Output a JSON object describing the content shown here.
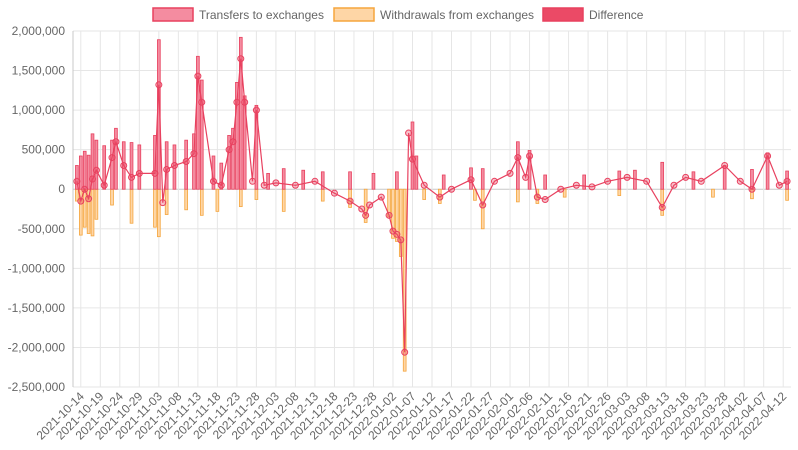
{
  "chart_data": {
    "type": "bar",
    "title": "",
    "xlabel": "",
    "ylabel": "",
    "ylim": [
      -2500000,
      2000000
    ],
    "y_ticks": [
      2000000,
      1500000,
      1000000,
      500000,
      0,
      -500000,
      -1000000,
      -1500000,
      -2000000,
      -2500000
    ],
    "y_tick_labels": [
      "2,000,000",
      "1,500,000",
      "1,000,000",
      "500,000",
      "0",
      "-500,000",
      "-1,000,000",
      "-1,500,000",
      "-2,000,000",
      "-2,500,000"
    ],
    "x_start": "2021-10-12",
    "x_end": "2022-04-14",
    "x_ticks": [
      "2021-10-14",
      "2021-10-19",
      "2021-10-24",
      "2021-10-29",
      "2021-11-03",
      "2021-11-08",
      "2021-11-13",
      "2021-11-18",
      "2021-11-23",
      "2021-11-28",
      "2021-12-03",
      "2021-12-08",
      "2021-12-13",
      "2021-12-18",
      "2021-12-23",
      "2021-12-28",
      "2022-01-02",
      "2022-01-07",
      "2022-01-12",
      "2022-01-17",
      "2022-01-22",
      "2022-01-27",
      "2022-02-01",
      "2022-02-06",
      "2022-02-11",
      "2022-02-16",
      "2022-02-21",
      "2022-02-26",
      "2022-03-03",
      "2022-03-08",
      "2022-03-13",
      "2022-03-18",
      "2022-03-23",
      "2022-03-28",
      "2022-04-02",
      "2022-04-07",
      "2022-04-12"
    ],
    "grid": true,
    "legend_position": "top",
    "colors": {
      "transfers_fill": "#f48ca0",
      "transfers_stroke": "#e8415f",
      "withdrawals_fill": "#fed6a6",
      "withdrawals_stroke": "#f5a53d",
      "difference_fill": "#eb4a66",
      "difference_stroke": "#e8415f"
    },
    "series": [
      {
        "name": "Transfers to exchanges",
        "type": "bar",
        "points": [
          [
            "2021-10-13",
            300000
          ],
          [
            "2021-10-14",
            420000
          ],
          [
            "2021-10-15",
            480000
          ],
          [
            "2021-10-16",
            430000
          ],
          [
            "2021-10-17",
            700000
          ],
          [
            "2021-10-18",
            620000
          ],
          [
            "2021-10-20",
            550000
          ],
          [
            "2021-10-22",
            620000
          ],
          [
            "2021-10-23",
            770000
          ],
          [
            "2021-10-25",
            600000
          ],
          [
            "2021-10-27",
            590000
          ],
          [
            "2021-10-29",
            560000
          ],
          [
            "2021-11-02",
            680000
          ],
          [
            "2021-11-03",
            1890000
          ],
          [
            "2021-11-05",
            600000
          ],
          [
            "2021-11-07",
            560000
          ],
          [
            "2021-11-10",
            620000
          ],
          [
            "2021-11-12",
            700000
          ],
          [
            "2021-11-13",
            1680000
          ],
          [
            "2021-11-14",
            1380000
          ],
          [
            "2021-11-17",
            420000
          ],
          [
            "2021-11-19",
            330000
          ],
          [
            "2021-11-21",
            680000
          ],
          [
            "2021-11-22",
            770000
          ],
          [
            "2021-11-23",
            1350000
          ],
          [
            "2021-11-24",
            1920000
          ],
          [
            "2021-11-25",
            1180000
          ],
          [
            "2021-11-28",
            1060000
          ],
          [
            "2021-12-01",
            200000
          ],
          [
            "2021-12-05",
            260000
          ],
          [
            "2021-12-10",
            240000
          ],
          [
            "2021-12-15",
            220000
          ],
          [
            "2021-12-22",
            220000
          ],
          [
            "2021-12-28",
            200000
          ],
          [
            "2022-01-03",
            220000
          ],
          [
            "2022-01-07",
            850000
          ],
          [
            "2022-01-08",
            420000
          ],
          [
            "2022-01-15",
            180000
          ],
          [
            "2022-01-22",
            270000
          ],
          [
            "2022-01-25",
            260000
          ],
          [
            "2022-02-03",
            600000
          ],
          [
            "2022-02-06",
            490000
          ],
          [
            "2022-02-10",
            180000
          ],
          [
            "2022-02-20",
            180000
          ],
          [
            "2022-03-01",
            230000
          ],
          [
            "2022-03-05",
            240000
          ],
          [
            "2022-03-12",
            340000
          ],
          [
            "2022-03-20",
            220000
          ],
          [
            "2022-03-28",
            300000
          ],
          [
            "2022-04-04",
            250000
          ],
          [
            "2022-04-08",
            460000
          ],
          [
            "2022-04-13",
            230000
          ]
        ]
      },
      {
        "name": "Withdrawals from exchanges",
        "type": "bar",
        "points": [
          [
            "2021-10-13",
            -150000
          ],
          [
            "2021-10-14",
            -580000
          ],
          [
            "2021-10-15",
            -480000
          ],
          [
            "2021-10-16",
            -560000
          ],
          [
            "2021-10-17",
            -590000
          ],
          [
            "2021-10-18",
            -380000
          ],
          [
            "2021-10-22",
            -200000
          ],
          [
            "2021-10-27",
            -430000
          ],
          [
            "2021-11-02",
            -480000
          ],
          [
            "2021-11-03",
            -600000
          ],
          [
            "2021-11-05",
            -320000
          ],
          [
            "2021-11-10",
            -260000
          ],
          [
            "2021-11-14",
            -330000
          ],
          [
            "2021-11-18",
            -280000
          ],
          [
            "2021-11-24",
            -220000
          ],
          [
            "2021-11-28",
            -130000
          ],
          [
            "2021-12-05",
            -280000
          ],
          [
            "2021-12-15",
            -150000
          ],
          [
            "2021-12-22",
            -230000
          ],
          [
            "2021-12-26",
            -420000
          ],
          [
            "2022-01-01",
            -350000
          ],
          [
            "2022-01-02",
            -620000
          ],
          [
            "2022-01-03",
            -660000
          ],
          [
            "2022-01-04",
            -850000
          ],
          [
            "2022-01-05",
            -2300000
          ],
          [
            "2022-01-10",
            -130000
          ],
          [
            "2022-01-14",
            -180000
          ],
          [
            "2022-01-23",
            -140000
          ],
          [
            "2022-01-25",
            -500000
          ],
          [
            "2022-02-03",
            -160000
          ],
          [
            "2022-02-08",
            -180000
          ],
          [
            "2022-02-15",
            -100000
          ],
          [
            "2022-03-01",
            -80000
          ],
          [
            "2022-03-12",
            -330000
          ],
          [
            "2022-03-25",
            -100000
          ],
          [
            "2022-04-04",
            -120000
          ],
          [
            "2022-04-13",
            -140000
          ]
        ]
      },
      {
        "name": "Difference",
        "type": "line",
        "points": [
          [
            "2021-10-13",
            100000
          ],
          [
            "2021-10-14",
            -150000
          ],
          [
            "2021-10-15",
            0
          ],
          [
            "2021-10-16",
            -120000
          ],
          [
            "2021-10-17",
            130000
          ],
          [
            "2021-10-18",
            240000
          ],
          [
            "2021-10-20",
            50000
          ],
          [
            "2021-10-22",
            400000
          ],
          [
            "2021-10-23",
            600000
          ],
          [
            "2021-10-25",
            300000
          ],
          [
            "2021-10-27",
            150000
          ],
          [
            "2021-10-29",
            200000
          ],
          [
            "2021-11-02",
            200000
          ],
          [
            "2021-11-03",
            1320000
          ],
          [
            "2021-11-04",
            -170000
          ],
          [
            "2021-11-05",
            250000
          ],
          [
            "2021-11-07",
            300000
          ],
          [
            "2021-11-10",
            350000
          ],
          [
            "2021-11-12",
            450000
          ],
          [
            "2021-11-13",
            1430000
          ],
          [
            "2021-11-14",
            1100000
          ],
          [
            "2021-11-17",
            100000
          ],
          [
            "2021-11-19",
            50000
          ],
          [
            "2021-11-21",
            500000
          ],
          [
            "2021-11-22",
            600000
          ],
          [
            "2021-11-23",
            1100000
          ],
          [
            "2021-11-24",
            1650000
          ],
          [
            "2021-11-25",
            1100000
          ],
          [
            "2021-11-27",
            100000
          ],
          [
            "2021-11-28",
            1000000
          ],
          [
            "2021-11-30",
            50000
          ],
          [
            "2021-12-03",
            80000
          ],
          [
            "2021-12-08",
            50000
          ],
          [
            "2021-12-13",
            100000
          ],
          [
            "2021-12-18",
            -50000
          ],
          [
            "2021-12-22",
            -150000
          ],
          [
            "2021-12-25",
            -250000
          ],
          [
            "2021-12-26",
            -330000
          ],
          [
            "2021-12-27",
            -200000
          ],
          [
            "2021-12-30",
            -100000
          ],
          [
            "2022-01-01",
            -330000
          ],
          [
            "2022-01-02",
            -530000
          ],
          [
            "2022-01-03",
            -570000
          ],
          [
            "2022-01-04",
            -640000
          ],
          [
            "2022-01-05",
            -2060000
          ],
          [
            "2022-01-06",
            710000
          ],
          [
            "2022-01-07",
            380000
          ],
          [
            "2022-01-10",
            50000
          ],
          [
            "2022-01-14",
            -100000
          ],
          [
            "2022-01-17",
            0
          ],
          [
            "2022-01-22",
            120000
          ],
          [
            "2022-01-25",
            -200000
          ],
          [
            "2022-01-28",
            100000
          ],
          [
            "2022-02-01",
            200000
          ],
          [
            "2022-02-03",
            400000
          ],
          [
            "2022-02-05",
            150000
          ],
          [
            "2022-02-06",
            420000
          ],
          [
            "2022-02-08",
            -100000
          ],
          [
            "2022-02-10",
            -130000
          ],
          [
            "2022-02-14",
            0
          ],
          [
            "2022-02-18",
            50000
          ],
          [
            "2022-02-22",
            30000
          ],
          [
            "2022-02-26",
            100000
          ],
          [
            "2022-03-03",
            150000
          ],
          [
            "2022-03-08",
            100000
          ],
          [
            "2022-03-12",
            -230000
          ],
          [
            "2022-03-15",
            50000
          ],
          [
            "2022-03-18",
            150000
          ],
          [
            "2022-03-22",
            100000
          ],
          [
            "2022-03-28",
            300000
          ],
          [
            "2022-04-01",
            100000
          ],
          [
            "2022-04-04",
            0
          ],
          [
            "2022-04-08",
            420000
          ],
          [
            "2022-04-11",
            50000
          ],
          [
            "2022-04-13",
            100000
          ]
        ]
      }
    ]
  }
}
